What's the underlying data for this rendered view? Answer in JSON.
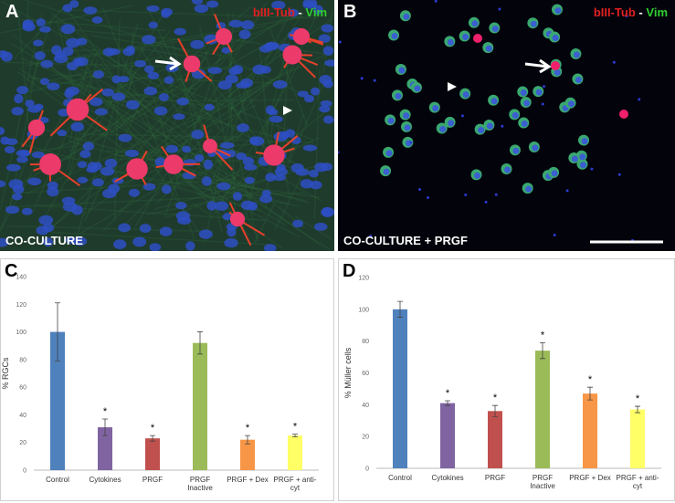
{
  "panels": [
    {
      "label": "A",
      "stain_1": "bIII-Tub",
      "separator": "-",
      "stain_2": "Vim",
      "caption": "CO-CULTURE"
    },
    {
      "label": "B",
      "stain_1": "bIII-Tub",
      "separator": "-",
      "stain_2": "Vim",
      "caption": "CO-CULTURE + PRGF"
    }
  ],
  "chart_data": [
    {
      "type": "bar",
      "panel_label": "C",
      "y_label": "% RGCs",
      "categories": [
        "Control",
        "Cytokines",
        "PRGF",
        "PRGF Inactive",
        "PRGF + Dex",
        "PRGF + anti-cyt"
      ],
      "values": [
        100,
        31,
        23,
        92,
        22,
        25
      ],
      "errors": [
        21,
        6,
        2,
        8,
        3,
        1
      ],
      "significance": [
        null,
        "*",
        "*",
        null,
        "*",
        "*"
      ],
      "colors": [
        "#4f81bd",
        "#8064a2",
        "#c0504d",
        "#9bbb59",
        "#f79646",
        "#ffff66"
      ],
      "ylim": [
        0,
        140
      ],
      "yticks": [
        0,
        20,
        40,
        60,
        80,
        100,
        120,
        140
      ],
      "grid": false
    },
    {
      "type": "bar",
      "panel_label": "D",
      "y_label": "% Müller cells",
      "categories": [
        "Control",
        "Cytokines",
        "PRGF",
        "PRGF Inactive",
        "PRGF + Dex",
        "PRGF + anti-cyt"
      ],
      "values": [
        100,
        41,
        36,
        74,
        47,
        37
      ],
      "errors": [
        5,
        1.5,
        3.5,
        5,
        4,
        2
      ],
      "significance": [
        null,
        "*",
        "*",
        "*",
        "*",
        "*"
      ],
      "colors": [
        "#4f81bd",
        "#8064a2",
        "#c0504d",
        "#9bbb59",
        "#f79646",
        "#ffff66"
      ],
      "ylim": [
        0,
        120
      ],
      "yticks": [
        0,
        20,
        40,
        60,
        80,
        100,
        120
      ],
      "grid": false
    }
  ]
}
